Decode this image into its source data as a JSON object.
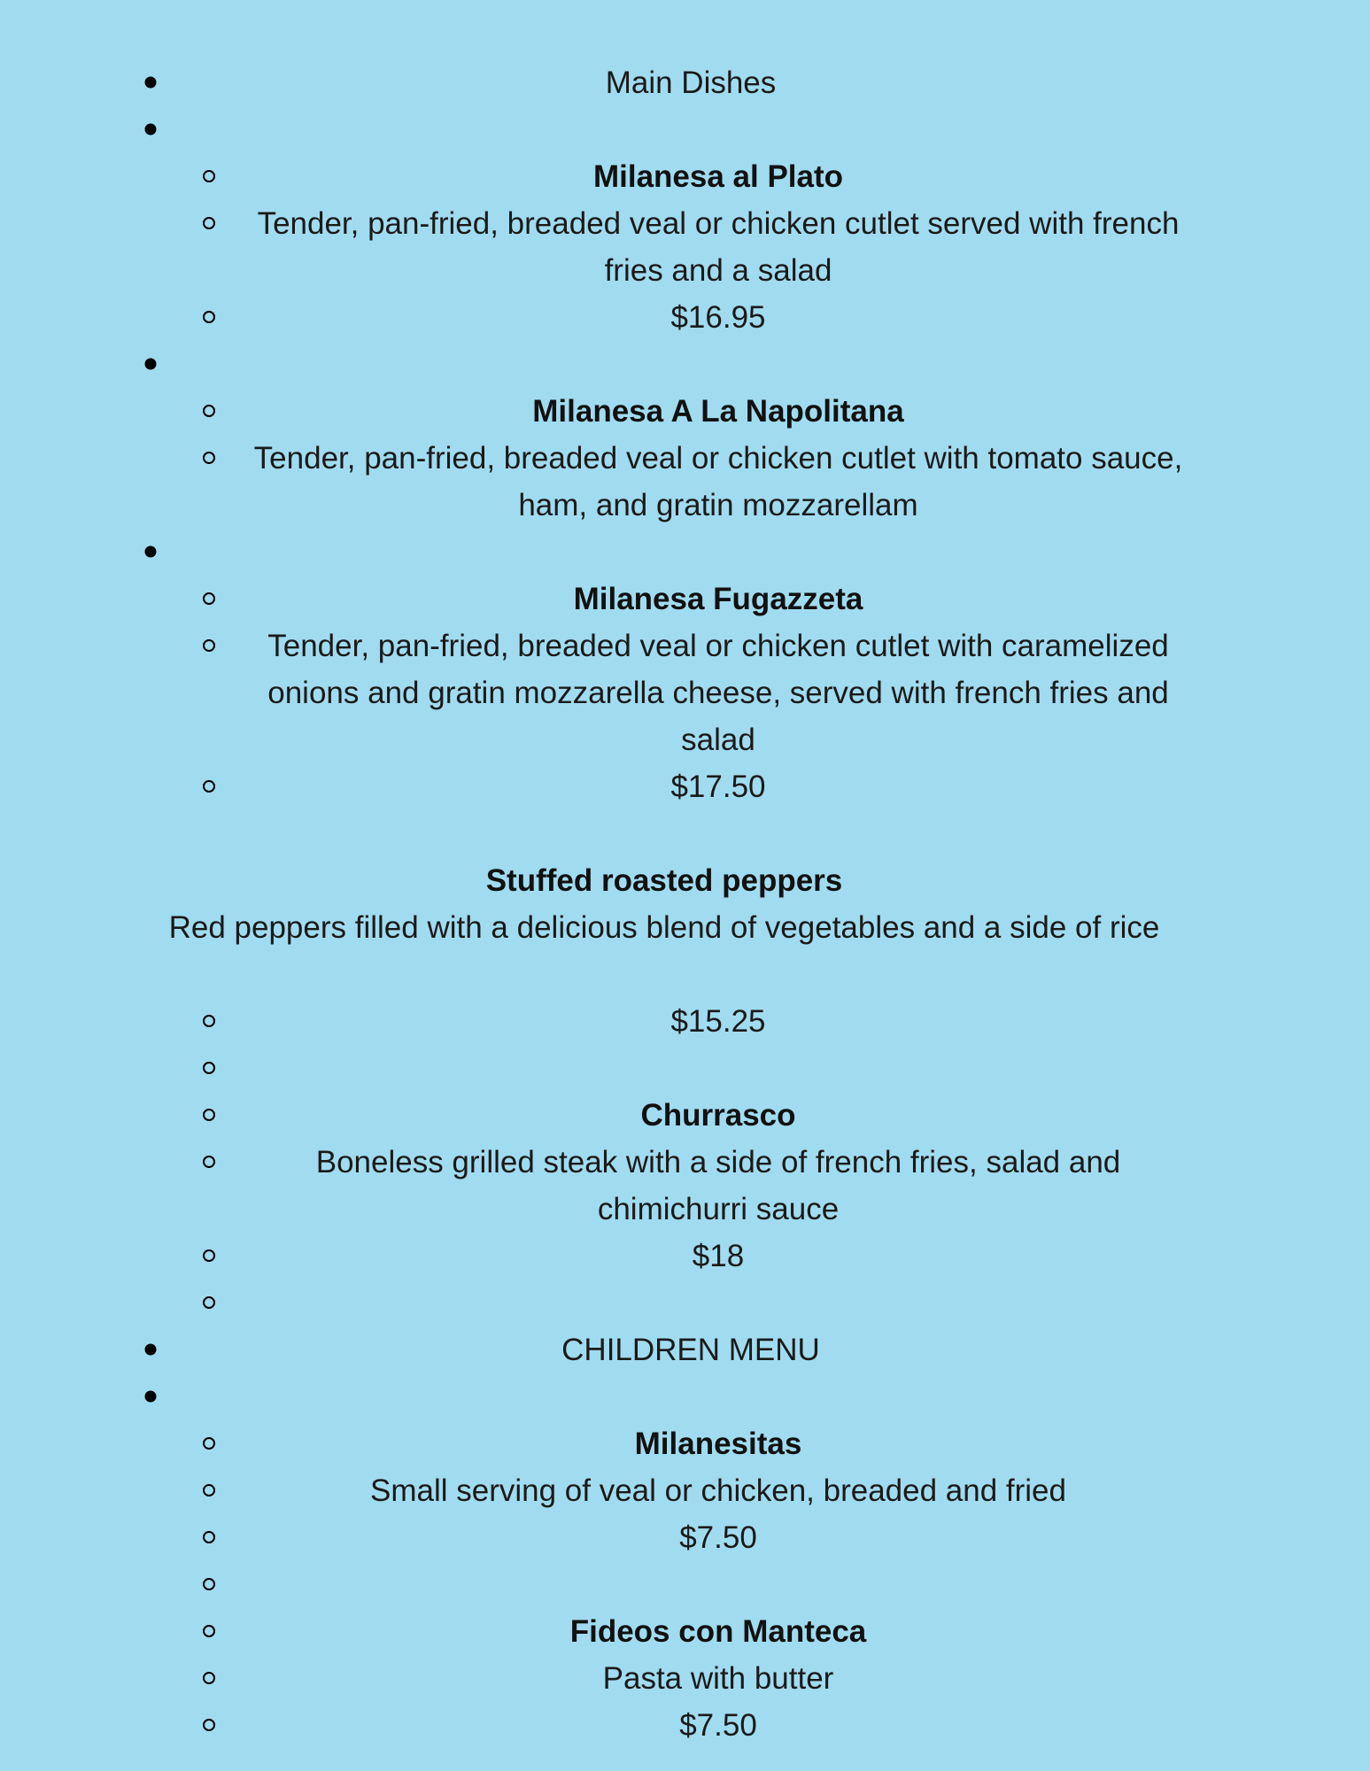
{
  "background_color": "#a1dbf0",
  "rows": [
    {
      "bullet": "filled",
      "style": "light",
      "text": "Main Dishes"
    },
    {
      "bullet": "filled",
      "style": "light",
      "text": ""
    },
    {
      "bullet": "hollow",
      "style": "bold",
      "text": "Milanesa al Plato"
    },
    {
      "bullet": "hollow",
      "style": "light",
      "text": "Tender, pan-fried, breaded veal or chicken cutlet served with french fries and a salad"
    },
    {
      "bullet": "hollow",
      "style": "light",
      "text": "$16.95"
    },
    {
      "bullet": "filled",
      "style": "light",
      "text": ""
    },
    {
      "bullet": "hollow",
      "style": "bold",
      "text": "Milanesa A La Napolitana"
    },
    {
      "bullet": "hollow",
      "style": "light",
      "text": "Tender, pan-fried, breaded veal or chicken cutlet with tomato sauce, ham, and gratin mozzarellam"
    },
    {
      "bullet": "filled",
      "style": "light",
      "text": ""
    },
    {
      "bullet": "hollow",
      "style": "bold",
      "text": "Milanesa Fugazzeta"
    },
    {
      "bullet": "hollow",
      "style": "light",
      "text": "Tender, pan-fried, breaded veal or chicken cutlet with caramelized onions and gratin mozzarella cheese, served with french fries and salad"
    },
    {
      "bullet": "hollow",
      "style": "light",
      "text": "$17.50"
    },
    {
      "bullet": "none",
      "style": "light",
      "text": ""
    },
    {
      "bullet": "none",
      "style": "bold",
      "text": "Stuffed roasted peppers"
    },
    {
      "bullet": "none",
      "style": "light",
      "text": "Red peppers filled with a delicious blend of vegetables and a side of rice"
    },
    {
      "bullet": "none",
      "style": "light",
      "text": ""
    },
    {
      "bullet": "hollow",
      "style": "light",
      "text": "$15.25"
    },
    {
      "bullet": "hollow",
      "style": "light",
      "text": ""
    },
    {
      "bullet": "hollow",
      "style": "bold",
      "text": "Churrasco"
    },
    {
      "bullet": "hollow",
      "style": "light",
      "text": "Boneless grilled steak with a side of french fries, salad and chimichurri sauce"
    },
    {
      "bullet": "hollow",
      "style": "light",
      "text": "$18"
    },
    {
      "bullet": "hollow",
      "style": "light",
      "text": ""
    },
    {
      "bullet": "filled",
      "style": "light",
      "text": "CHILDREN MENU"
    },
    {
      "bullet": "filled",
      "style": "light",
      "text": ""
    },
    {
      "bullet": "hollow",
      "style": "bold",
      "text": "Milanesitas"
    },
    {
      "bullet": "hollow",
      "style": "light",
      "text": "Small serving of veal or chicken, breaded and fried"
    },
    {
      "bullet": "hollow",
      "style": "light",
      "text": "$7.50"
    },
    {
      "bullet": "hollow",
      "style": "light",
      "text": ""
    },
    {
      "bullet": "hollow",
      "style": "bold",
      "text": "Fideos con Manteca"
    },
    {
      "bullet": "hollow",
      "style": "light",
      "text": "Pasta with butter"
    },
    {
      "bullet": "hollow",
      "style": "light",
      "text": "$7.50"
    }
  ]
}
